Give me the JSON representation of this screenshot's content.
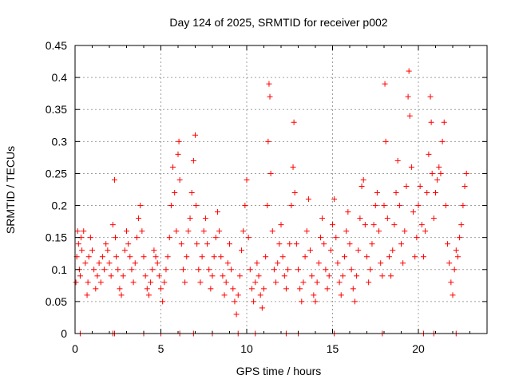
{
  "chart_data": {
    "type": "scatter",
    "title": "Day 124 of 2025, SRMTID for receiver p002",
    "xlabel": "GPS time / hours",
    "ylabel": "SRMTID / TECUs",
    "xlim": [
      0,
      24
    ],
    "ylim": [
      0,
      0.45
    ],
    "xticks": [
      0,
      5,
      10,
      15,
      20
    ],
    "xtick_labels": [
      "0",
      "5",
      "10",
      "15",
      "20"
    ],
    "yticks": [
      0,
      0.05,
      0.1,
      0.15,
      0.2,
      0.25,
      0.3,
      0.35,
      0.4,
      0.45
    ],
    "ytick_labels": [
      "0",
      "0.05",
      "0.1",
      "0.15",
      "0.2",
      "0.25",
      "0.3",
      "0.35",
      "0.4",
      "0.45"
    ],
    "grid": true,
    "marker": "+",
    "color": "#ff0000",
    "series": [
      {
        "name": "SRMTID",
        "points": [
          [
            0.05,
            0.08
          ],
          [
            0.1,
            0.12
          ],
          [
            0.15,
            0.16
          ],
          [
            0.2,
            0.14
          ],
          [
            0.25,
            0.1
          ],
          [
            0.3,
            0.09
          ],
          [
            0.35,
            0.15
          ],
          [
            0.4,
            0.13
          ],
          [
            0.5,
            0.16
          ],
          [
            0.6,
            0.11
          ],
          [
            0.7,
            0.06
          ],
          [
            0.75,
            0.08
          ],
          [
            0.8,
            0.12
          ],
          [
            0.9,
            0.15
          ],
          [
            1.0,
            0.13
          ],
          [
            1.1,
            0.1
          ],
          [
            1.2,
            0.07
          ],
          [
            1.3,
            0.09
          ],
          [
            1.4,
            0.11
          ],
          [
            1.5,
            0.08
          ],
          [
            1.6,
            0.12
          ],
          [
            1.7,
            0.1
          ],
          [
            1.8,
            0.14
          ],
          [
            1.9,
            0.13
          ],
          [
            2.0,
            0.11
          ],
          [
            2.1,
            0.09
          ],
          [
            2.2,
            0.17
          ],
          [
            2.3,
            0.24
          ],
          [
            2.35,
            0.15
          ],
          [
            2.4,
            0.12
          ],
          [
            2.5,
            0.1
          ],
          [
            2.6,
            0.07
          ],
          [
            2.7,
            0.06
          ],
          [
            2.8,
            0.09
          ],
          [
            2.9,
            0.13
          ],
          [
            3.0,
            0.16
          ],
          [
            3.1,
            0.14
          ],
          [
            3.2,
            0.12
          ],
          [
            3.3,
            0.1
          ],
          [
            3.4,
            0.08
          ],
          [
            3.5,
            0.11
          ],
          [
            3.6,
            0.15
          ],
          [
            3.7,
            0.18
          ],
          [
            3.8,
            0.2
          ],
          [
            3.9,
            0.16
          ],
          [
            4.0,
            0.12
          ],
          [
            4.1,
            0.09
          ],
          [
            4.2,
            0.07
          ],
          [
            4.3,
            0.06
          ],
          [
            4.4,
            0.08
          ],
          [
            4.5,
            0.1
          ],
          [
            4.6,
            0.13
          ],
          [
            4.7,
            0.12
          ],
          [
            4.8,
            0.11
          ],
          [
            4.9,
            0.09
          ],
          [
            5.0,
            0.07
          ],
          [
            5.1,
            0.05
          ],
          [
            5.2,
            0.08
          ],
          [
            5.3,
            0.1
          ],
          [
            5.4,
            0.12
          ],
          [
            5.5,
            0.15
          ],
          [
            5.6,
            0.2
          ],
          [
            5.7,
            0.26
          ],
          [
            5.8,
            0.22
          ],
          [
            5.9,
            0.16
          ],
          [
            6.0,
            0.28
          ],
          [
            6.05,
            0.3
          ],
          [
            6.1,
            0.24
          ],
          [
            6.2,
            0.14
          ],
          [
            6.3,
            0.1
          ],
          [
            6.4,
            0.08
          ],
          [
            6.5,
            0.12
          ],
          [
            6.6,
            0.16
          ],
          [
            6.7,
            0.18
          ],
          [
            6.8,
            0.22
          ],
          [
            6.9,
            0.27
          ],
          [
            7.0,
            0.31
          ],
          [
            7.05,
            0.2
          ],
          [
            7.1,
            0.14
          ],
          [
            7.2,
            0.1
          ],
          [
            7.3,
            0.08
          ],
          [
            7.4,
            0.12
          ],
          [
            7.5,
            0.16
          ],
          [
            7.6,
            0.18
          ],
          [
            7.7,
            0.14
          ],
          [
            7.8,
            0.1
          ],
          [
            7.9,
            0.07
          ],
          [
            8.0,
            0.09
          ],
          [
            8.1,
            0.12
          ],
          [
            8.2,
            0.15
          ],
          [
            8.3,
            0.19
          ],
          [
            8.4,
            0.16
          ],
          [
            8.5,
            0.12
          ],
          [
            8.6,
            0.09
          ],
          [
            8.7,
            0.06
          ],
          [
            8.8,
            0.08
          ],
          [
            8.9,
            0.11
          ],
          [
            9.0,
            0.14
          ],
          [
            9.1,
            0.1
          ],
          [
            9.2,
            0.07
          ],
          [
            9.3,
            0.05
          ],
          [
            9.4,
            0.03
          ],
          [
            9.5,
            0.06
          ],
          [
            9.6,
            0.09
          ],
          [
            9.7,
            0.13
          ],
          [
            9.8,
            0.16
          ],
          [
            9.9,
            0.2
          ],
          [
            10.0,
            0.24
          ],
          [
            10.1,
            0.15
          ],
          [
            10.2,
            0.1
          ],
          [
            10.3,
            0.07
          ],
          [
            10.4,
            0.05
          ],
          [
            10.5,
            0.08
          ],
          [
            10.6,
            0.11
          ],
          [
            10.7,
            0.09
          ],
          [
            10.8,
            0.06
          ],
          [
            10.9,
            0.04
          ],
          [
            11.0,
            0.07
          ],
          [
            11.1,
            0.12
          ],
          [
            11.2,
            0.2
          ],
          [
            11.25,
            0.3
          ],
          [
            11.3,
            0.39
          ],
          [
            11.35,
            0.37
          ],
          [
            11.4,
            0.25
          ],
          [
            11.5,
            0.16
          ],
          [
            11.6,
            0.1
          ],
          [
            11.7,
            0.08
          ],
          [
            11.8,
            0.11
          ],
          [
            11.9,
            0.14
          ],
          [
            12.0,
            0.17
          ],
          [
            12.1,
            0.12
          ],
          [
            12.2,
            0.09
          ],
          [
            12.3,
            0.07
          ],
          [
            12.4,
            0.1
          ],
          [
            12.5,
            0.14
          ],
          [
            12.6,
            0.2
          ],
          [
            12.7,
            0.26
          ],
          [
            12.75,
            0.33
          ],
          [
            12.8,
            0.22
          ],
          [
            12.9,
            0.14
          ],
          [
            13.0,
            0.1
          ],
          [
            13.1,
            0.07
          ],
          [
            13.2,
            0.05
          ],
          [
            13.3,
            0.08
          ],
          [
            13.4,
            0.12
          ],
          [
            13.5,
            0.16
          ],
          [
            13.6,
            0.21
          ],
          [
            13.7,
            0.13
          ],
          [
            13.8,
            0.09
          ],
          [
            13.9,
            0.06
          ],
          [
            14.0,
            0.05
          ],
          [
            14.1,
            0.08
          ],
          [
            14.2,
            0.11
          ],
          [
            14.3,
            0.15
          ],
          [
            14.4,
            0.18
          ],
          [
            14.5,
            0.14
          ],
          [
            14.6,
            0.1
          ],
          [
            14.7,
            0.07
          ],
          [
            14.8,
            0.09
          ],
          [
            14.9,
            0.13
          ],
          [
            15.0,
            0.17
          ],
          [
            15.1,
            0.21
          ],
          [
            15.2,
            0.15
          ],
          [
            15.3,
            0.11
          ],
          [
            15.4,
            0.08
          ],
          [
            15.5,
            0.06
          ],
          [
            15.6,
            0.09
          ],
          [
            15.7,
            0.12
          ],
          [
            15.8,
            0.16
          ],
          [
            15.9,
            0.19
          ],
          [
            16.0,
            0.14
          ],
          [
            16.1,
            0.1
          ],
          [
            16.2,
            0.07
          ],
          [
            16.3,
            0.05
          ],
          [
            16.4,
            0.09
          ],
          [
            16.5,
            0.13
          ],
          [
            16.6,
            0.18
          ],
          [
            16.7,
            0.23
          ],
          [
            16.8,
            0.24
          ],
          [
            16.9,
            0.17
          ],
          [
            17.0,
            0.12
          ],
          [
            17.1,
            0.08
          ],
          [
            17.2,
            0.1
          ],
          [
            17.3,
            0.14
          ],
          [
            17.4,
            0.17
          ],
          [
            17.5,
            0.2
          ],
          [
            17.6,
            0.22
          ],
          [
            17.7,
            0.16
          ],
          [
            17.8,
            0.11
          ],
          [
            17.9,
            0.09
          ],
          [
            18.0,
            0.2
          ],
          [
            18.05,
            0.39
          ],
          [
            18.1,
            0.3
          ],
          [
            18.2,
            0.18
          ],
          [
            18.3,
            0.12
          ],
          [
            18.4,
            0.09
          ],
          [
            18.5,
            0.13
          ],
          [
            18.6,
            0.17
          ],
          [
            18.7,
            0.22
          ],
          [
            18.8,
            0.27
          ],
          [
            18.9,
            0.2
          ],
          [
            19.0,
            0.14
          ],
          [
            19.1,
            0.11
          ],
          [
            19.2,
            0.16
          ],
          [
            19.3,
            0.23
          ],
          [
            19.4,
            0.37
          ],
          [
            19.45,
            0.41
          ],
          [
            19.5,
            0.34
          ],
          [
            19.6,
            0.26
          ],
          [
            19.7,
            0.19
          ],
          [
            19.8,
            0.12
          ],
          [
            19.9,
            0.15
          ],
          [
            20.0,
            0.2
          ],
          [
            20.1,
            0.23
          ],
          [
            20.2,
            0.17
          ],
          [
            20.3,
            0.12
          ],
          [
            20.4,
            0.16
          ],
          [
            20.5,
            0.22
          ],
          [
            20.6,
            0.28
          ],
          [
            20.7,
            0.37
          ],
          [
            20.75,
            0.33
          ],
          [
            20.8,
            0.25
          ],
          [
            20.9,
            0.18
          ],
          [
            21.0,
            0.22
          ],
          [
            21.1,
            0.24
          ],
          [
            21.2,
            0.26
          ],
          [
            21.3,
            0.25
          ],
          [
            21.4,
            0.3
          ],
          [
            21.5,
            0.33
          ],
          [
            21.6,
            0.2
          ],
          [
            21.7,
            0.14
          ],
          [
            21.8,
            0.11
          ],
          [
            21.9,
            0.08
          ],
          [
            22.0,
            0.06
          ],
          [
            22.1,
            0.1
          ],
          [
            22.2,
            0.13
          ],
          [
            22.3,
            0.12
          ],
          [
            22.4,
            0.15
          ],
          [
            22.5,
            0.17
          ],
          [
            22.6,
            0.2
          ],
          [
            22.7,
            0.23
          ],
          [
            22.8,
            0.25
          ],
          [
            0.3,
            0.0
          ],
          [
            2.2,
            0.0
          ],
          [
            2.3,
            0.0
          ],
          [
            4.0,
            0.0
          ],
          [
            5.0,
            0.0
          ],
          [
            6.1,
            0.0
          ],
          [
            6.9,
            0.0
          ],
          [
            8.0,
            0.0
          ],
          [
            9.5,
            0.0
          ],
          [
            10.5,
            0.0
          ],
          [
            12.3,
            0.0
          ],
          [
            13.0,
            0.0
          ],
          [
            15.1,
            0.0
          ],
          [
            17.9,
            0.0
          ],
          [
            20.3,
            0.0
          ],
          [
            20.9,
            0.0
          ],
          [
            22.2,
            0.0
          ]
        ]
      }
    ]
  }
}
